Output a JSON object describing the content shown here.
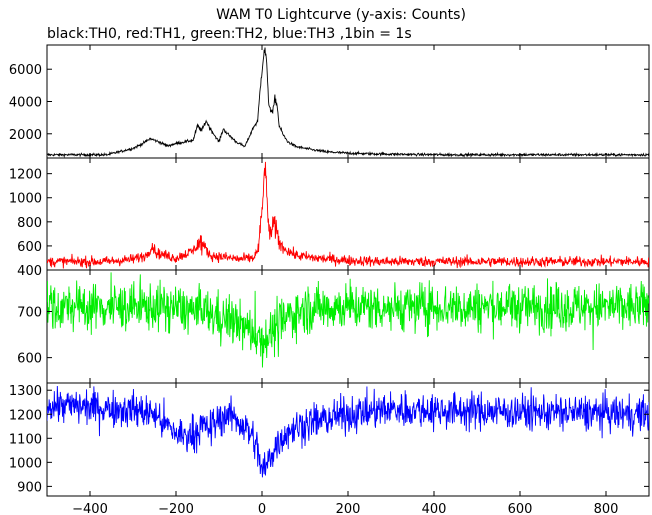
{
  "chart_data": {
    "type": "line",
    "title": "WAM T0 Lightcurve (y-axis: Counts)",
    "subtitle": "black:TH0, red:TH1, green:TH2, blue:TH3 ,1bin = 1s",
    "xlim": [
      -500,
      900
    ],
    "x_ticks": [
      -400,
      -200,
      0,
      200,
      400,
      600,
      800
    ],
    "x_tick_labels": [
      "−400",
      "−200",
      "0",
      "200",
      "400",
      "600",
      "800"
    ],
    "panels": [
      {
        "name": "TH0",
        "color": "#000000",
        "ylim": [
          500,
          7500
        ],
        "y_ticks": [
          2000,
          4000,
          6000
        ],
        "baseline": 700,
        "noise": 40,
        "spikes": 0,
        "features": [
          [
            -300,
            1100
          ],
          [
            -280,
            1350
          ],
          [
            -260,
            1700
          ],
          [
            -240,
            1500
          ],
          [
            -220,
            1250
          ],
          [
            -200,
            1400
          ],
          [
            -180,
            1500
          ],
          [
            -160,
            1600
          ],
          [
            -150,
            2500
          ],
          [
            -140,
            2200
          ],
          [
            -130,
            2800
          ],
          [
            -120,
            2300
          ],
          [
            -110,
            1900
          ],
          [
            -100,
            1500
          ],
          [
            -90,
            2300
          ],
          [
            -80,
            2000
          ],
          [
            -60,
            1500
          ],
          [
            -40,
            1200
          ],
          [
            -30,
            1800
          ],
          [
            -20,
            2400
          ],
          [
            -10,
            2800
          ],
          [
            -5,
            4500
          ],
          [
            0,
            6000
          ],
          [
            5,
            7200
          ],
          [
            10,
            6800
          ],
          [
            15,
            4000
          ],
          [
            20,
            3500
          ],
          [
            25,
            3300
          ],
          [
            30,
            4200
          ],
          [
            35,
            3800
          ],
          [
            40,
            2500
          ],
          [
            50,
            1900
          ],
          [
            60,
            1500
          ],
          [
            80,
            1200
          ],
          [
            100,
            1100
          ],
          [
            120,
            1000
          ],
          [
            150,
            880
          ],
          [
            200,
            800
          ],
          [
            250,
            760
          ],
          [
            350,
            720
          ]
        ]
      },
      {
        "name": "TH1",
        "color": "#ff0000",
        "ylim": [
          400,
          1330
        ],
        "y_ticks": [
          400,
          600,
          800,
          1000,
          1200
        ],
        "baseline": 470,
        "noise": 22,
        "spikes": 0,
        "features": [
          [
            -300,
            490
          ],
          [
            -270,
            520
          ],
          [
            -255,
            600
          ],
          [
            -245,
            540
          ],
          [
            -200,
            500
          ],
          [
            -160,
            560
          ],
          [
            -145,
            630
          ],
          [
            -135,
            600
          ],
          [
            -120,
            520
          ],
          [
            -50,
            490
          ],
          [
            -20,
            500
          ],
          [
            -10,
            560
          ],
          [
            -5,
            680
          ],
          [
            0,
            900
          ],
          [
            3,
            1000
          ],
          [
            6,
            1300
          ],
          [
            9,
            1200
          ],
          [
            12,
            900
          ],
          [
            16,
            750
          ],
          [
            22,
            700
          ],
          [
            28,
            780
          ],
          [
            35,
            700
          ],
          [
            45,
            600
          ],
          [
            60,
            560
          ],
          [
            80,
            520
          ],
          [
            120,
            500
          ],
          [
            200,
            480
          ]
        ]
      },
      {
        "name": "TH2",
        "color": "#00ee00",
        "ylim": [
          545,
          790
        ],
        "y_ticks": [
          600,
          700
        ],
        "baseline": 710,
        "noise": 26,
        "spikes": 18,
        "features": [
          [
            -150,
            700
          ],
          [
            -100,
            690
          ],
          [
            -60,
            675
          ],
          [
            -30,
            660
          ],
          [
            -10,
            650
          ],
          [
            0,
            635
          ],
          [
            10,
            645
          ],
          [
            30,
            660
          ],
          [
            60,
            690
          ],
          [
            100,
            705
          ],
          [
            150,
            710
          ]
        ]
      },
      {
        "name": "TH3",
        "color": "#0000ff",
        "ylim": [
          860,
          1330
        ],
        "y_ticks": [
          900,
          1000,
          1100,
          1200,
          1300
        ],
        "baseline": 1230,
        "noise": 38,
        "spikes": 0,
        "features": [
          [
            -500,
            1240
          ],
          [
            -300,
            1220
          ],
          [
            -250,
            1200
          ],
          [
            -220,
            1150
          ],
          [
            -200,
            1120
          ],
          [
            -180,
            1110
          ],
          [
            -160,
            1120
          ],
          [
            -140,
            1150
          ],
          [
            -120,
            1140
          ],
          [
            -100,
            1180
          ],
          [
            -80,
            1200
          ],
          [
            -60,
            1180
          ],
          [
            -40,
            1150
          ],
          [
            -20,
            1100
          ],
          [
            -10,
            1050
          ],
          [
            0,
            960
          ],
          [
            10,
            980
          ],
          [
            20,
            1030
          ],
          [
            40,
            1090
          ],
          [
            60,
            1130
          ],
          [
            100,
            1160
          ],
          [
            150,
            1180
          ],
          [
            200,
            1200
          ],
          [
            300,
            1220
          ],
          [
            900,
            1200
          ]
        ]
      }
    ]
  }
}
